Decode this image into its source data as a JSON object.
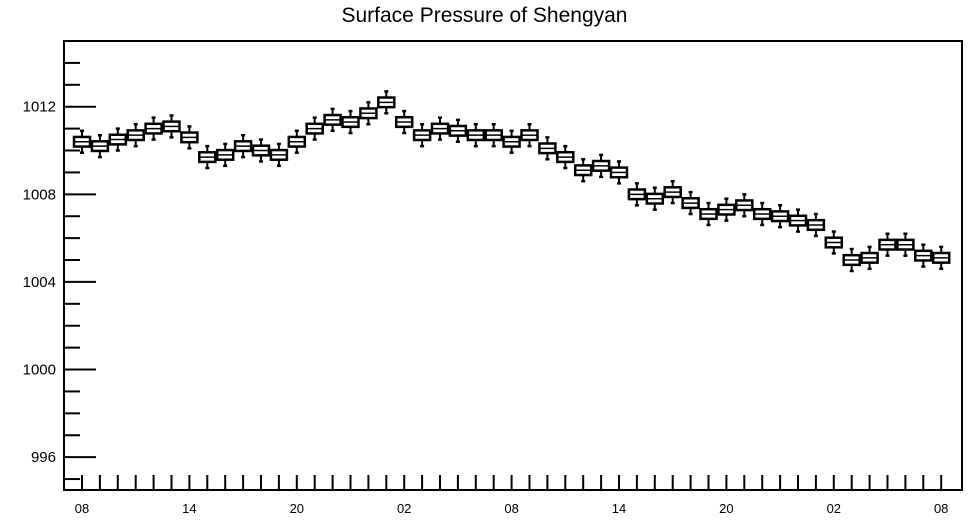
{
  "chart_data": {
    "type": "boxplot",
    "title": "Surface Pressure of Shengyan",
    "xlabel": "",
    "ylabel": "",
    "ylim": [
      994.5,
      1015.0
    ],
    "y_ticks": [
      996,
      1000,
      1004,
      1008,
      1012
    ],
    "y_tick_labels": [
      "996",
      "1000",
      "1004",
      "1008",
      "1012"
    ],
    "x_tick_labels": [
      {
        "index": 0,
        "label": "08"
      },
      {
        "index": 6,
        "label": "14"
      },
      {
        "index": 12,
        "label": "20"
      },
      {
        "index": 18,
        "label": "02"
      },
      {
        "index": 24,
        "label": "08"
      },
      {
        "index": 30,
        "label": "14"
      },
      {
        "index": 36,
        "label": "20"
      },
      {
        "index": 42,
        "label": "02"
      },
      {
        "index": 48,
        "label": "08"
      }
    ],
    "grid": false,
    "values": [
      1010.4,
      1010.2,
      1010.5,
      1010.7,
      1011.0,
      1011.1,
      1010.6,
      1009.7,
      1009.8,
      1010.2,
      1010.0,
      1009.8,
      1010.4,
      1011.0,
      1011.4,
      1011.3,
      1011.7,
      1012.2,
      1011.3,
      1010.7,
      1011.0,
      1010.9,
      1010.7,
      1010.7,
      1010.4,
      1010.7,
      1010.1,
      1009.7,
      1009.1,
      1009.3,
      1009.0,
      1008.0,
      1007.8,
      1008.1,
      1007.6,
      1007.1,
      1007.3,
      1007.5,
      1007.1,
      1007.0,
      1006.8,
      1006.6,
      1005.8,
      1005.0,
      1005.1,
      1005.7,
      1005.7,
      1005.2,
      1005.1
    ],
    "box_half_range": 0.22,
    "whisker_half_range": 0.5
  }
}
